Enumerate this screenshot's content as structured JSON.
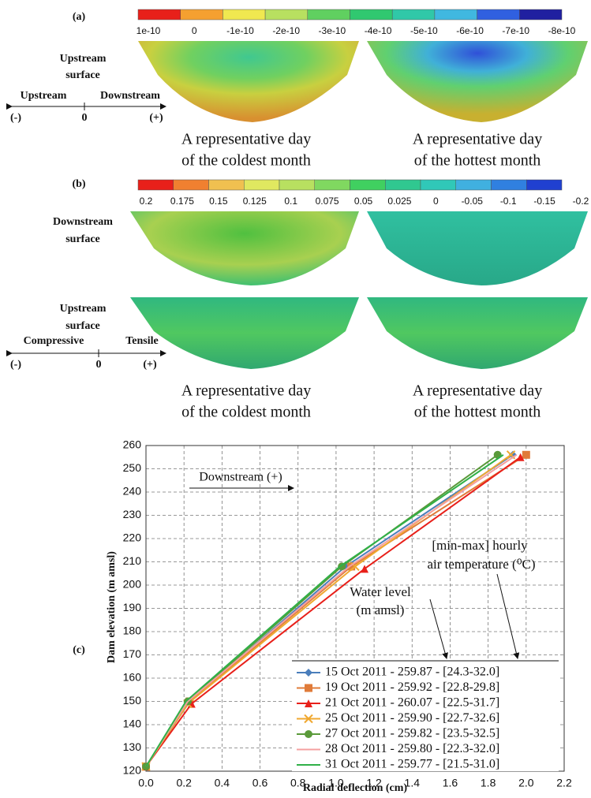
{
  "panel_a": {
    "label": "(a)",
    "colorbar": {
      "colors": [
        "#e8201a",
        "#f5a030",
        "#f0e850",
        "#b8e060",
        "#60d060",
        "#30c870",
        "#30c8a8",
        "#40b8e0",
        "#3060e0",
        "#2020a0"
      ],
      "labels": [
        "1e-10",
        "0",
        "-1e-10",
        "-2e-10",
        "-3e-10",
        "-4e-10",
        "-5e-10",
        "-6e-10",
        "-7e-10",
        "-8e-10"
      ]
    },
    "surface": [
      "Upstream",
      "surface"
    ],
    "axis": {
      "left": "Upstream",
      "right": "Downstream",
      "minus": "(-)",
      "zero": "0",
      "plus": "(+)"
    },
    "captions": [
      [
        "A representative day",
        "of the coldest month"
      ],
      [
        "A representative day",
        "of the hottest month"
      ]
    ]
  },
  "panel_b": {
    "label": "(b)",
    "colorbar": {
      "colors": [
        "#e8201a",
        "#f08030",
        "#f0c050",
        "#e0e860",
        "#b8e060",
        "#80d860",
        "#40d060",
        "#30c890",
        "#30c8b8",
        "#40b0e0",
        "#3080e0",
        "#2040d0"
      ],
      "labels": [
        "0.2",
        "0.175",
        "0.15",
        "0.125",
        "0.1",
        "0.075",
        "0.05",
        "0.025",
        "0",
        "-0.05",
        "-0.1",
        "-0.15",
        "-0.2"
      ]
    },
    "surfaces": [
      [
        "Downstream",
        "surface"
      ],
      [
        "Upstream",
        "surface"
      ]
    ],
    "axis": {
      "left": "Compressive",
      "right": "Tensile",
      "minus": "(-)",
      "zero": "0",
      "plus": "(+)"
    },
    "captions": [
      [
        "A representative day",
        "of the coldest month"
      ],
      [
        "A representative day",
        "of the hottest month"
      ]
    ]
  },
  "chart_data": {
    "type": "line",
    "label": "(c)",
    "x_label": "Radial deflection (cm)",
    "y_label": "Dam elevation (m amsl)",
    "annotations": {
      "direction": "Downstream (+)",
      "temperature": [
        "[min-max] hourly",
        "air temperature (⁰C)"
      ],
      "water": [
        "Water level",
        "(m amsl)"
      ]
    },
    "xlim": [
      0,
      2.2
    ],
    "ylim": [
      120,
      260
    ],
    "xticks": [
      {
        "value": 0,
        "label": "0.0"
      },
      0.2,
      0.4,
      0.6,
      0.8,
      {
        "value": 1,
        "label": "1.0"
      },
      1.2,
      1.4,
      1.6,
      1.8,
      {
        "value": 2,
        "label": "2.0"
      },
      2.2
    ],
    "yticks": [
      120,
      130,
      140,
      150,
      160,
      170,
      180,
      190,
      200,
      210,
      220,
      230,
      240,
      250,
      260
    ],
    "grid": true,
    "series": [
      {
        "name": "15 Oct 2011 - 259.87 - [24.3-32.0]",
        "color": "#4a7ebb",
        "marker": "diamond",
        "x": [
          0,
          0.23,
          1.05,
          1.93
        ],
        "values": [
          122,
          150,
          208,
          256
        ]
      },
      {
        "name": "19 Oct 2011 - 259.92 - [22.8-29.8]",
        "color": "#e07b39",
        "marker": "square",
        "x": [
          0,
          0.23,
          1.08,
          2.0
        ],
        "values": [
          122,
          150,
          208,
          256
        ]
      },
      {
        "name": "21 Oct 2011 - 260.07 - [22.5-31.7]",
        "color": "#e8201a",
        "marker": "triangle",
        "x": [
          0,
          0.24,
          1.15,
          1.97
        ],
        "values": [
          122,
          149,
          207,
          255
        ]
      },
      {
        "name": "25 Oct 2011 - 259.90 - [22.7-32.6]",
        "color": "#f0a830",
        "marker": "x",
        "x": [
          0,
          0.22,
          1.1,
          1.92
        ],
        "values": [
          122,
          149,
          208,
          256
        ]
      },
      {
        "name": "27 Oct 2011 - 259.82 - [23.5-32.5]",
        "color": "#5a9a3a",
        "marker": "circle",
        "x": [
          0,
          0.22,
          1.03,
          1.85
        ],
        "values": [
          122,
          150,
          208,
          256
        ]
      },
      {
        "name": "28 Oct 2011 - 259.80 - [22.3-32.0]",
        "color": "#f4a0a0",
        "marker": "none",
        "x": [
          0,
          0.22,
          1.07,
          1.95
        ],
        "values": [
          122,
          150,
          208,
          256
        ]
      },
      {
        "name": "31 Oct 2011 - 259.77 - [21.5-31.0]",
        "color": "#30b048",
        "marker": "none",
        "x": [
          0,
          0.21,
          1.02,
          1.88
        ],
        "values": [
          122,
          150,
          208,
          256
        ]
      }
    ]
  }
}
